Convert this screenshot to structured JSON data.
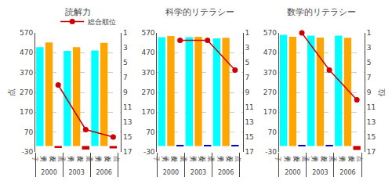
{
  "chart_data": [
    {
      "type": "bar",
      "title": "読解力",
      "categories": [
        "2000",
        "2003",
        "2006"
      ],
      "series": [
        {
          "name": "男\n子",
          "color": "#00FFFF",
          "values": [
            498,
            479,
            481
          ]
        },
        {
          "name": "女\n子",
          "color": "#FFA500",
          "values": [
            522,
            498,
            520
          ]
        },
        {
          "name": "点\n差",
          "colors": [
            "#CC0000",
            "#CC0000",
            "#CC0000"
          ],
          "values": [
            -10,
            -18,
            -12
          ]
        },
        {
          "name": "総合順位",
          "type": "line",
          "axis": "y2",
          "color": "#CC0000",
          "marker": "circle",
          "values": [
            8,
            14,
            15
          ]
        }
      ],
      "ylabel": "点",
      "ylim": [
        -30,
        570
      ],
      "yticks": [
        -30,
        70,
        170,
        270,
        370,
        470,
        570
      ],
      "y2lim": [
        17,
        1
      ],
      "y2ticks": [
        1,
        3,
        5,
        7,
        9,
        11,
        13,
        15,
        17
      ],
      "grid": true,
      "legend": "upper right"
    },
    {
      "type": "bar",
      "title": "科学的リテラシー",
      "categories": [
        "2000",
        "2003",
        "2006"
      ],
      "series": [
        {
          "name": "男\n子",
          "color": "#00FFFF",
          "values": [
            548,
            548,
            542
          ]
        },
        {
          "name": "女\n子",
          "color": "#FFA500",
          "values": [
            554,
            550,
            545
          ]
        },
        {
          "name": "点\n差",
          "colors": [
            "#0000CC",
            "#0000CC",
            "#0000CC"
          ],
          "values": [
            2,
            2,
            2
          ]
        },
        {
          "type": "line",
          "axis": "y2",
          "color": "#CC0000",
          "marker": "circle",
          "values": [
            2,
            2,
            6
          ]
        }
      ],
      "ylim": [
        -30,
        570
      ],
      "yticks": [
        -30,
        70,
        170,
        270,
        370,
        470,
        570
      ],
      "y2lim": [
        17,
        1
      ],
      "y2ticks": [
        1,
        3,
        5,
        7,
        9,
        11,
        13,
        15,
        17
      ],
      "grid": true
    },
    {
      "type": "bar",
      "title": "数学的リテラシー",
      "categories": [
        "2000",
        "2003",
        "2006"
      ],
      "series": [
        {
          "name": "男\n子",
          "color": "#00FFFF",
          "values": [
            560,
            556,
            556
          ]
        },
        {
          "name": "女\n子",
          "color": "#FFA500",
          "values": [
            550,
            546,
            545
          ]
        },
        {
          "name": "点\n差",
          "colors": [
            "#0000CC",
            "#0000CC",
            "#CC0000"
          ],
          "values": [
            2,
            2,
            -20
          ]
        },
        {
          "type": "line",
          "axis": "y2",
          "color": "#CC0000",
          "marker": "circle",
          "values": [
            1,
            6,
            10
          ]
        }
      ],
      "y2label": "位",
      "ylim": [
        -30,
        570
      ],
      "yticks": [
        -30,
        70,
        170,
        270,
        370,
        470,
        570
      ],
      "y2lim": [
        17,
        1
      ],
      "y2ticks": [
        1,
        3,
        5,
        7,
        9,
        11,
        13,
        15,
        17
      ],
      "grid": true
    }
  ]
}
